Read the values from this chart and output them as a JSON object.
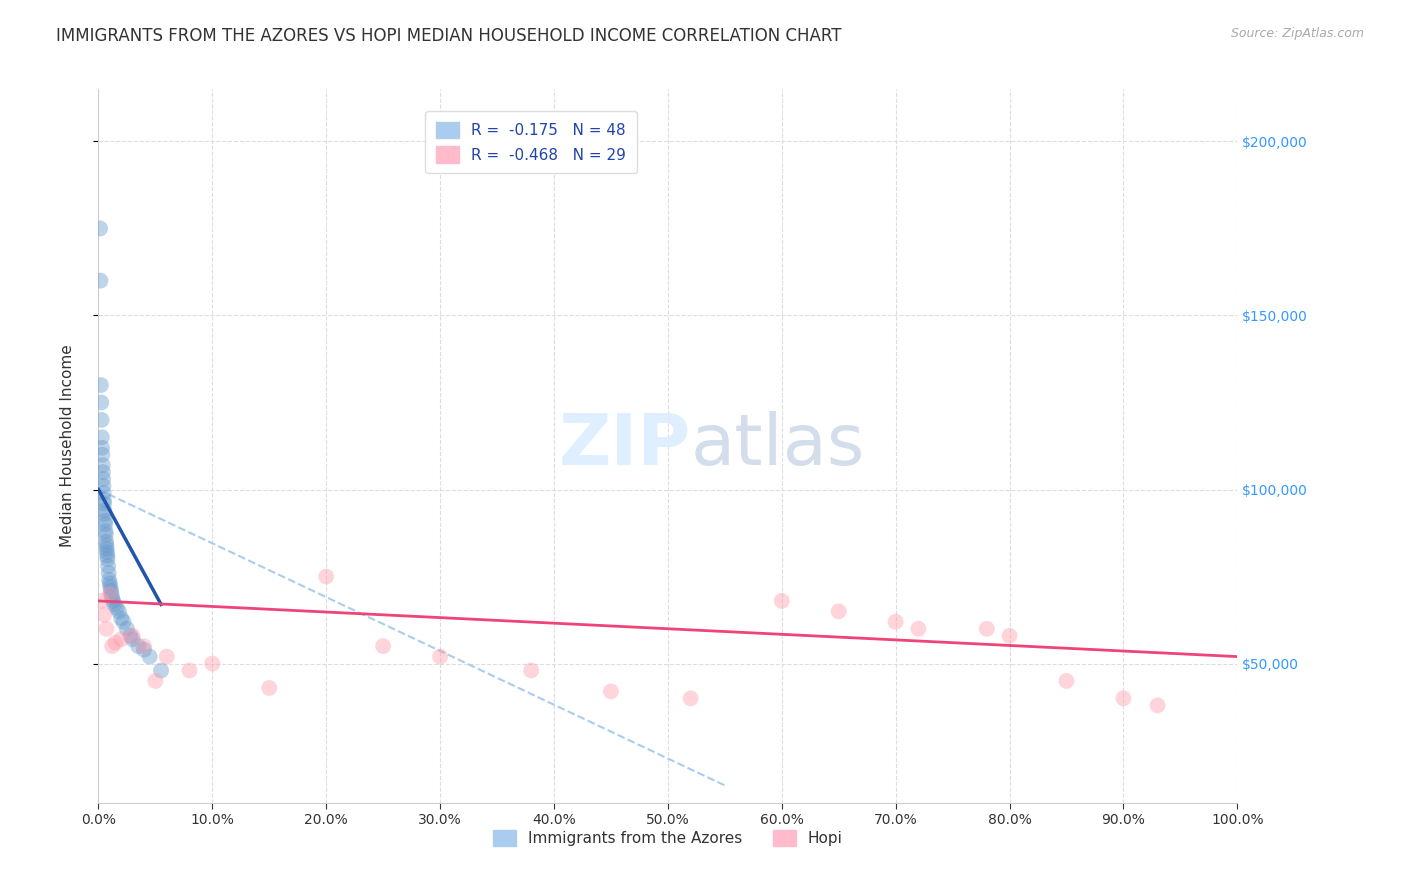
{
  "title": "IMMIGRANTS FROM THE AZORES VS HOPI MEDIAN HOUSEHOLD INCOME CORRELATION CHART",
  "source_text": "Source: ZipAtlas.com",
  "ylabel": "Median Household Income",
  "xmin": 0.0,
  "xmax": 100.0,
  "ymin": 10000,
  "ymax": 215000,
  "yticks": [
    50000,
    100000,
    150000,
    200000
  ],
  "ytick_labels": [
    "$50,000",
    "$100,000",
    "$150,000",
    "$200,000"
  ],
  "series1_color": "#6699cc",
  "series1_R": "-0.175",
  "series1_N": "48",
  "series1_name": "Immigrants from the Azores",
  "series2_color": "#ff99aa",
  "series2_R": "-0.468",
  "series2_N": "29",
  "series2_name": "Hopi",
  "blue_scatter_x": [
    0.15,
    0.18,
    0.22,
    0.25,
    0.28,
    0.3,
    0.32,
    0.35,
    0.38,
    0.4,
    0.42,
    0.44,
    0.46,
    0.48,
    0.5,
    0.52,
    0.55,
    0.58,
    0.6,
    0.62,
    0.65,
    0.68,
    0.7,
    0.72,
    0.75,
    0.78,
    0.8,
    0.85,
    0.9,
    0.95,
    1.0,
    1.05,
    1.1,
    1.15,
    1.2,
    1.3,
    1.4,
    1.6,
    1.8,
    2.0,
    2.2,
    2.5,
    2.8,
    3.0,
    3.5,
    4.0,
    4.5,
    5.5
  ],
  "blue_scatter_y": [
    175000,
    160000,
    130000,
    125000,
    120000,
    115000,
    112000,
    110000,
    107000,
    105000,
    103000,
    101000,
    99000,
    97000,
    96000,
    94000,
    93000,
    91000,
    90000,
    88000,
    87000,
    85000,
    84000,
    83000,
    82000,
    81000,
    80000,
    78000,
    76000,
    74000,
    73000,
    72000,
    71000,
    70000,
    69000,
    68000,
    67000,
    66000,
    65000,
    63000,
    62000,
    60000,
    58000,
    57000,
    55000,
    54000,
    52000,
    48000
  ],
  "pink_scatter_x": [
    0.3,
    0.5,
    0.7,
    1.0,
    1.2,
    1.5,
    2.0,
    3.0,
    4.0,
    5.0,
    6.0,
    8.0,
    10.0,
    15.0,
    20.0,
    25.0,
    30.0,
    38.0,
    45.0,
    52.0,
    60.0,
    65.0,
    70.0,
    72.0,
    78.0,
    80.0,
    85.0,
    90.0,
    93.0
  ],
  "pink_scatter_y": [
    68000,
    64000,
    60000,
    70000,
    55000,
    56000,
    57000,
    58000,
    55000,
    45000,
    52000,
    48000,
    50000,
    43000,
    75000,
    55000,
    52000,
    48000,
    42000,
    40000,
    68000,
    65000,
    62000,
    60000,
    60000,
    58000,
    45000,
    40000,
    38000
  ],
  "blue_line_x0": 0.0,
  "blue_line_y0": 100000,
  "blue_line_x1": 5.5,
  "blue_line_y1": 67000,
  "pink_line_x0": 0.0,
  "pink_line_y0": 68000,
  "pink_line_x1": 100.0,
  "pink_line_y1": 52000,
  "dashed_x0": 0.0,
  "dashed_y0": 100000,
  "dashed_x1": 55.0,
  "dashed_y1": 15000,
  "background_color": "#ffffff",
  "grid_color": "#dddddd",
  "title_fontsize": 12,
  "tick_fontsize": 10,
  "scatter_size": 130,
  "scatter_alpha": 0.42
}
